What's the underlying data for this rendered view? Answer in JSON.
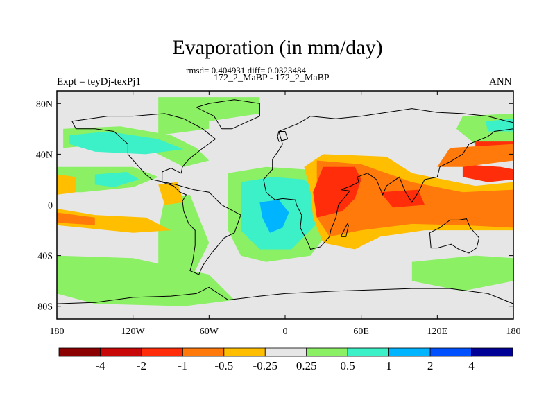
{
  "header": {
    "title": "Evaporation (in mm/day)",
    "stats": "rmsd= 0.404931 diff= 0.0323484",
    "case": "172_2_MaBP - 172_2_MaBP",
    "left_label": "Expt = teyDj-texPj1",
    "right_label": "ANN"
  },
  "chart_data": {
    "type": "heatmap",
    "title": "Evaporation (in mm/day)",
    "xlim": [
      -180,
      180
    ],
    "ylim": [
      -90,
      90
    ],
    "x_ticks": [
      {
        "value": -180,
        "label": "180"
      },
      {
        "value": -120,
        "label": "120W"
      },
      {
        "value": -60,
        "label": "60W"
      },
      {
        "value": 0,
        "label": "0"
      },
      {
        "value": 60,
        "label": "60E"
      },
      {
        "value": 120,
        "label": "120E"
      },
      {
        "value": 180,
        "label": "180"
      }
    ],
    "y_ticks": [
      {
        "value": 80,
        "label": "80N"
      },
      {
        "value": 40,
        "label": "40N"
      },
      {
        "value": 0,
        "label": "0"
      },
      {
        "value": -40,
        "label": "40S"
      },
      {
        "value": -80,
        "label": "80S"
      }
    ],
    "colorbar": {
      "levels": [
        -4,
        -2,
        -1,
        -0.5,
        -0.25,
        0.25,
        0.5,
        1,
        2,
        4
      ],
      "labels": [
        "-4",
        "-2",
        "-1",
        "-0.5",
        "-0.25",
        "0.25",
        "0.5",
        "1",
        "2",
        "4"
      ],
      "colors": [
        "#8b0000",
        "#c80808",
        "#ff2d0a",
        "#ff7a0a",
        "#ffbe00",
        "#e6e6e6",
        "#8cf064",
        "#3cf0c8",
        "#00b4ff",
        "#0050ff",
        "#000096"
      ]
    },
    "regions": [
      {
        "level": 0.25,
        "points": [
          [
            -100,
            85
          ],
          [
            -20,
            85
          ],
          [
            -20,
            72
          ],
          [
            -60,
            66
          ],
          [
            -60,
            60
          ],
          [
            -100,
            55
          ]
        ]
      },
      {
        "level": 0.25,
        "points": [
          [
            -175,
            60
          ],
          [
            -130,
            62
          ],
          [
            -90,
            55
          ],
          [
            -70,
            45
          ],
          [
            -60,
            35
          ],
          [
            -80,
            30
          ],
          [
            -110,
            45
          ],
          [
            -140,
            48
          ],
          [
            -175,
            45
          ]
        ]
      },
      {
        "level": 0.5,
        "points": [
          [
            -170,
            55
          ],
          [
            -140,
            58
          ],
          [
            -100,
            52
          ],
          [
            -80,
            44
          ],
          [
            -110,
            40
          ],
          [
            -150,
            42
          ],
          [
            -170,
            48
          ]
        ]
      },
      {
        "level": 0.25,
        "points": [
          [
            -180,
            30
          ],
          [
            -120,
            30
          ],
          [
            -100,
            22
          ],
          [
            -120,
            14
          ],
          [
            -160,
            10
          ],
          [
            -180,
            10
          ]
        ]
      },
      {
        "level": 0.5,
        "points": [
          [
            -150,
            24
          ],
          [
            -125,
            26
          ],
          [
            -115,
            20
          ],
          [
            -135,
            14
          ],
          [
            -150,
            16
          ]
        ]
      },
      {
        "level": 0.25,
        "points": [
          [
            -45,
            25
          ],
          [
            -15,
            30
          ],
          [
            15,
            28
          ],
          [
            35,
            20
          ],
          [
            35,
            -20
          ],
          [
            20,
            -40
          ],
          [
            -15,
            -45
          ],
          [
            -35,
            -40
          ],
          [
            -45,
            -20
          ]
        ]
      },
      {
        "level": 0.5,
        "points": [
          [
            -35,
            18
          ],
          [
            -10,
            22
          ],
          [
            15,
            20
          ],
          [
            28,
            10
          ],
          [
            25,
            -15
          ],
          [
            5,
            -35
          ],
          [
            -20,
            -35
          ],
          [
            -35,
            -20
          ]
        ]
      },
      {
        "level": 1,
        "points": [
          [
            -20,
            2
          ],
          [
            -5,
            4
          ],
          [
            3,
            -6
          ],
          [
            -2,
            -18
          ],
          [
            -12,
            -22
          ],
          [
            -18,
            -10
          ]
        ]
      },
      {
        "level": 0.25,
        "points": [
          [
            -95,
            5
          ],
          [
            -75,
            8
          ],
          [
            -60,
            -30
          ],
          [
            -75,
            -60
          ],
          [
            -90,
            -75
          ],
          [
            -100,
            -50
          ],
          [
            -100,
            -20
          ]
        ]
      },
      {
        "level": 0.25,
        "points": [
          [
            -180,
            -40
          ],
          [
            -120,
            -42
          ],
          [
            -60,
            -55
          ],
          [
            -40,
            -75
          ],
          [
            -80,
            -80
          ],
          [
            -150,
            -78
          ],
          [
            -180,
            -70
          ]
        ]
      },
      {
        "level": 0.25,
        "points": [
          [
            100,
            -45
          ],
          [
            150,
            -40
          ],
          [
            180,
            -42
          ],
          [
            180,
            -60
          ],
          [
            140,
            -68
          ],
          [
            100,
            -60
          ]
        ]
      },
      {
        "level": 0.25,
        "points": [
          [
            140,
            70
          ],
          [
            180,
            72
          ],
          [
            180,
            50
          ],
          [
            150,
            48
          ],
          [
            135,
            60
          ]
        ]
      },
      {
        "level": 0.5,
        "points": [
          [
            158,
            66
          ],
          [
            180,
            68
          ],
          [
            180,
            58
          ],
          [
            160,
            58
          ]
        ]
      },
      {
        "level": -0.25,
        "points": [
          [
            -180,
            -3
          ],
          [
            -150,
            -8
          ],
          [
            -110,
            -10
          ],
          [
            -90,
            -20
          ],
          [
            -120,
            -22
          ],
          [
            -160,
            -18
          ],
          [
            -180,
            -16
          ]
        ]
      },
      {
        "level": -0.5,
        "points": [
          [
            -180,
            -6
          ],
          [
            -150,
            -10
          ],
          [
            -150,
            -16
          ],
          [
            -180,
            -14
          ]
        ]
      },
      {
        "level": -0.25,
        "points": [
          [
            -180,
            24
          ],
          [
            -165,
            22
          ],
          [
            -165,
            10
          ],
          [
            -180,
            8
          ]
        ]
      },
      {
        "level": -0.25,
        "points": [
          [
            -100,
            16
          ],
          [
            -85,
            18
          ],
          [
            -80,
            2
          ],
          [
            -95,
            0
          ]
        ]
      },
      {
        "level": -0.25,
        "points": [
          [
            30,
            40
          ],
          [
            80,
            38
          ],
          [
            100,
            25
          ],
          [
            125,
            20
          ],
          [
            150,
            15
          ],
          [
            180,
            18
          ],
          [
            180,
            -20
          ],
          [
            150,
            -20
          ],
          [
            110,
            -20
          ],
          [
            75,
            -25
          ],
          [
            55,
            -35
          ],
          [
            30,
            -30
          ],
          [
            22,
            -10
          ],
          [
            20,
            10
          ],
          [
            15,
            30
          ]
        ]
      },
      {
        "level": -0.5,
        "points": [
          [
            25,
            35
          ],
          [
            60,
            32
          ],
          [
            100,
            18
          ],
          [
            140,
            10
          ],
          [
            180,
            12
          ],
          [
            180,
            -18
          ],
          [
            140,
            -16
          ],
          [
            100,
            -15
          ],
          [
            60,
            -20
          ],
          [
            35,
            -25
          ],
          [
            25,
            -10
          ]
        ]
      },
      {
        "level": -1,
        "points": [
          [
            30,
            30
          ],
          [
            55,
            30
          ],
          [
            60,
            20
          ],
          [
            55,
            5
          ],
          [
            45,
            -5
          ],
          [
            25,
            -10
          ],
          [
            22,
            10
          ]
        ]
      },
      {
        "level": -1,
        "points": [
          [
            75,
            10
          ],
          [
            105,
            12
          ],
          [
            110,
            0
          ],
          [
            85,
            -2
          ]
        ]
      },
      {
        "level": -1,
        "points": [
          [
            140,
            32
          ],
          [
            170,
            30
          ],
          [
            180,
            28
          ],
          [
            180,
            20
          ],
          [
            160,
            18
          ],
          [
            140,
            22
          ]
        ]
      },
      {
        "level": -1,
        "points": [
          [
            150,
            50
          ],
          [
            180,
            50
          ],
          [
            180,
            45
          ],
          [
            150,
            44
          ]
        ]
      },
      {
        "level": -0.5,
        "points": [
          [
            130,
            45
          ],
          [
            180,
            48
          ],
          [
            180,
            35
          ],
          [
            140,
            30
          ],
          [
            120,
            30
          ]
        ]
      }
    ]
  },
  "colorbar_data": {
    "levels": [
      -4,
      -2,
      -1,
      -0.5,
      -0.25,
      0.25,
      0.5,
      1,
      2,
      4
    ]
  }
}
